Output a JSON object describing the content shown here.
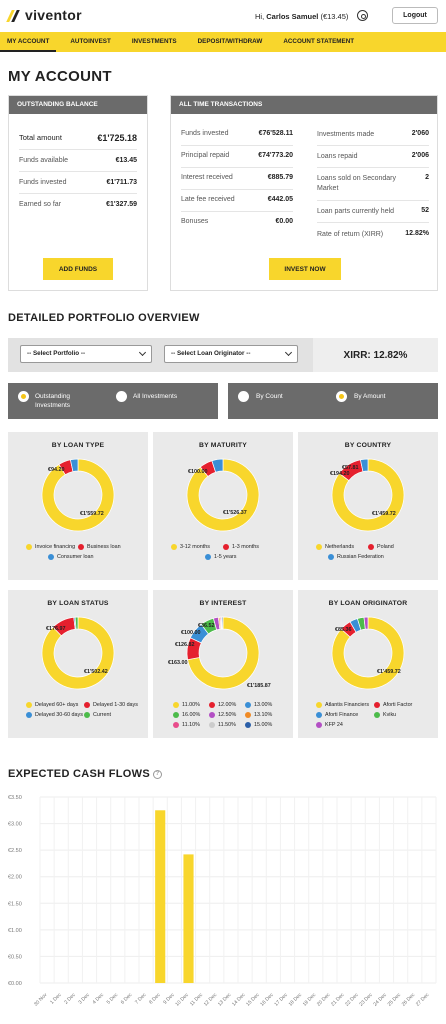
{
  "header": {
    "logo": "viventor",
    "greeting_prefix": "Hi, ",
    "user_name": "Carlos Samuel",
    "balance_short": "(€13.45)",
    "logout": "Logout"
  },
  "nav": [
    "MY ACCOUNT",
    "AUTOINVEST",
    "INVESTMENTS",
    "DEPOSIT/WITHDRAW",
    "ACCOUNT STATEMENT"
  ],
  "page_title": "MY ACCOUNT",
  "outstanding": {
    "title": "OUTSTANDING BALANCE",
    "rows": [
      {
        "label": "Total amount",
        "value": "€1'725.18"
      },
      {
        "label": "Funds available",
        "value": "€13.45"
      },
      {
        "label": "Funds invested",
        "value": "€1'711.73"
      },
      {
        "label": "Earned so far",
        "value": "€1'327.59"
      }
    ],
    "button": "ADD FUNDS"
  },
  "transactions": {
    "title": "ALL TIME TRANSACTIONS",
    "left": [
      {
        "label": "Funds invested",
        "value": "€76'528.11"
      },
      {
        "label": "Principal repaid",
        "value": "€74'773.20"
      },
      {
        "label": "Interest received",
        "value": "€885.79"
      },
      {
        "label": "Late fee received",
        "value": "€442.05"
      },
      {
        "label": "Bonuses",
        "value": "€0.00"
      }
    ],
    "right": [
      {
        "label": "Investments made",
        "value": "2'060"
      },
      {
        "label": "Loans repaid",
        "value": "2'006"
      },
      {
        "label": "Loans sold on Secondary Market",
        "value": "2"
      },
      {
        "label": "Loan parts currently held",
        "value": "52"
      },
      {
        "label": "Rate of return (XIRR)",
        "value": "12.82%"
      }
    ],
    "button": "INVEST NOW"
  },
  "portfolio": {
    "title": "DETAILED PORTFOLIO OVERVIEW",
    "select_portfolio": "-- Select Portfolio --",
    "select_originator": "-- Select Loan Originator --",
    "xirr": "XIRR: 12.82%",
    "toggle_left": [
      "Outstanding Investments",
      "All Investments"
    ],
    "toggle_right": [
      "By Count",
      "By Amount"
    ]
  },
  "colors": {
    "yellow": "#f8d62c",
    "red": "#e5202e",
    "blue": "#3a8fd6",
    "green": "#4cbb4a",
    "orange": "#f08a24",
    "purple": "#b34fc4",
    "grey": "#6b6b6b"
  },
  "pies": [
    {
      "title": "BY LOAN TYPE",
      "labels": [
        "€94.20",
        "€1'559.72"
      ],
      "slices": [
        {
          "name": "Invoice financing",
          "value": 1559.72,
          "color": "#f8d62c"
        },
        {
          "name": "Business loan",
          "value": 94.2,
          "color": "#e5202e"
        },
        {
          "name": "Consumer loan",
          "value": 57.81,
          "color": "#3a8fd6"
        }
      ]
    },
    {
      "title": "BY MATURITY",
      "labels": [
        "€100.00",
        "€1'526.37"
      ],
      "slices": [
        {
          "name": "3-12 months",
          "value": 1526.37,
          "color": "#f8d62c"
        },
        {
          "name": "1-3 months",
          "value": 100.0,
          "color": "#e5202e"
        },
        {
          "name": "1-5 years",
          "value": 85.36,
          "color": "#3a8fd6"
        }
      ]
    },
    {
      "title": "BY COUNTRY",
      "labels": [
        "€57.81",
        "€194.20",
        "€1'459.72"
      ],
      "slices": [
        {
          "name": "Netherlands",
          "value": 1459.72,
          "color": "#f8d62c"
        },
        {
          "name": "Poland",
          "value": 194.2,
          "color": "#e5202e"
        },
        {
          "name": "Russian Federation",
          "value": 57.81,
          "color": "#3a8fd6"
        }
      ]
    },
    {
      "title": "BY LOAN STATUS",
      "labels": [
        "€176.97",
        "€1'502.42"
      ],
      "slices": [
        {
          "name": "Delayed 60+ days",
          "value": 1502.42,
          "color": "#f8d62c"
        },
        {
          "name": "Delayed 1-30 days",
          "value": 176.97,
          "color": "#e5202e"
        },
        {
          "name": "Delayed 30-60 days",
          "value": 10,
          "color": "#3a8fd6"
        },
        {
          "name": "Current",
          "value": 22,
          "color": "#4cbb4a"
        }
      ]
    },
    {
      "title": "BY INTEREST",
      "labels": [
        "€36.52",
        "€100.00",
        "€126.82",
        "€163.00",
        "€1'185.87"
      ],
      "slices": [
        {
          "name": "11.00%",
          "value": 1185.87,
          "color": "#f8d62c"
        },
        {
          "name": "12.00%",
          "value": 163.0,
          "color": "#e5202e"
        },
        {
          "name": "13.00%",
          "value": 126.82,
          "color": "#3a8fd6"
        },
        {
          "name": "16.00%",
          "value": 100.0,
          "color": "#4cbb4a"
        },
        {
          "name": "12.50%",
          "value": 36.52,
          "color": "#b34fc4"
        },
        {
          "name": "13.10%",
          "value": 10,
          "color": "#f08a24"
        },
        {
          "name": "11.10%",
          "value": 8,
          "color": "#e84c8b"
        },
        {
          "name": "11.50%",
          "value": 8,
          "color": "#cccccc"
        },
        {
          "name": "15.00%",
          "value": 8,
          "color": "#2b5fa8"
        }
      ]
    },
    {
      "title": "BY LOAN ORIGINATOR",
      "labels": [
        "€85.36",
        "€1'459.72"
      ],
      "slices": [
        {
          "name": "Atlantis Financiers",
          "value": 1459.72,
          "color": "#f8d62c"
        },
        {
          "name": "Aforti Factor",
          "value": 85.36,
          "color": "#e5202e"
        },
        {
          "name": "Aforti Finance",
          "value": 60,
          "color": "#3a8fd6"
        },
        {
          "name": "Kviku",
          "value": 50,
          "color": "#4cbb4a"
        },
        {
          "name": "KFP 24",
          "value": 30,
          "color": "#b34fc4"
        }
      ]
    }
  ],
  "cashflows": {
    "title": "EXPECTED CASH FLOWS",
    "help": "?"
  },
  "chart_data": {
    "type": "bar",
    "title": "EXPECTED CASH FLOWS",
    "categories": [
      "30 Nov",
      "1 Dec",
      "2 Dec",
      "3 Dec",
      "4 Dec",
      "5 Dec",
      "6 Dec",
      "7 Dec",
      "8 Dec",
      "9 Dec",
      "10 Dec",
      "11 Dec",
      "12 Dec",
      "13 Dec",
      "14 Dec",
      "15 Dec",
      "16 Dec",
      "17 Dec",
      "18 Dec",
      "19 Dec",
      "20 Dec",
      "21 Dec",
      "22 Dec",
      "23 Dec",
      "24 Dec",
      "25 Dec",
      "26 Dec",
      "27 Dec"
    ],
    "values": [
      0,
      0,
      0,
      0,
      0,
      0,
      0,
      0,
      3.25,
      0,
      2.42,
      0,
      0,
      0,
      0,
      0,
      0,
      0,
      0,
      0,
      0,
      0,
      0,
      0,
      0,
      0,
      0,
      0
    ],
    "yticks": [
      "€0.00",
      "€0.50",
      "€1.00",
      "€1.50",
      "€2.00",
      "€2.50",
      "€3.00",
      "€3.50"
    ],
    "ylim": [
      0,
      3.5
    ],
    "color": "#f8d62c",
    "grid": true
  }
}
